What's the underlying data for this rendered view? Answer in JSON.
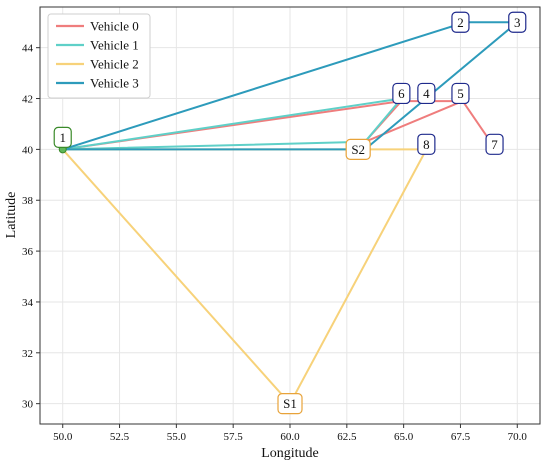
{
  "chart_data": {
    "type": "line",
    "xlabel": "Longitude",
    "ylabel": "Latitude",
    "xlim": [
      49.0,
      71.0
    ],
    "ylim": [
      29.2,
      45.6
    ],
    "x_ticks": [
      "50.0",
      "52.5",
      "55.0",
      "57.5",
      "60.0",
      "62.5",
      "65.0",
      "67.5",
      "70.0"
    ],
    "y_ticks": [
      "30",
      "32",
      "34",
      "36",
      "38",
      "40",
      "42",
      "44"
    ],
    "grid": true,
    "legend_position": "top-left",
    "nodes": [
      {
        "id": "1",
        "label": "1",
        "x": 50.0,
        "y": 40.0,
        "color": "#3a8a2a"
      },
      {
        "id": "2",
        "label": "2",
        "x": 67.5,
        "y": 45.0,
        "color": "#1f2a8c"
      },
      {
        "id": "3",
        "label": "3",
        "x": 70.0,
        "y": 45.0,
        "color": "#1f2a8c"
      },
      {
        "id": "4",
        "label": "4",
        "x": 66.0,
        "y": 42.2,
        "color": "#1f2a8c"
      },
      {
        "id": "5",
        "label": "5",
        "x": 67.5,
        "y": 42.2,
        "color": "#1f2a8c"
      },
      {
        "id": "6",
        "label": "6",
        "x": 64.9,
        "y": 42.2,
        "color": "#1f2a8c"
      },
      {
        "id": "7",
        "label": "7",
        "x": 69.0,
        "y": 40.2,
        "color": "#1f2a8c"
      },
      {
        "id": "8",
        "label": "8",
        "x": 66.0,
        "y": 40.2,
        "color": "#1f2a8c"
      },
      {
        "id": "S1",
        "label": "S1",
        "x": 60.0,
        "y": 30.0,
        "color": "#e8a33a"
      },
      {
        "id": "S2",
        "label": "S2",
        "x": 63.0,
        "y": 40.0,
        "color": "#e8a33a"
      }
    ],
    "series": [
      {
        "name": "Vehicle 0",
        "color": "#ef7d7d",
        "points": [
          [
            50.0,
            40.0
          ],
          [
            64.9,
            41.9
          ],
          [
            63.3,
            40.3
          ],
          [
            67.6,
            41.9
          ],
          [
            68.9,
            40.2
          ],
          [
            67.6,
            41.9
          ],
          [
            64.9,
            41.9
          ],
          [
            50.0,
            40.0
          ]
        ]
      },
      {
        "name": "Vehicle 1",
        "color": "#5fd0c8",
        "points": [
          [
            50.0,
            40.0
          ],
          [
            64.9,
            42.0
          ],
          [
            63.3,
            40.3
          ],
          [
            50.0,
            40.0
          ]
        ]
      },
      {
        "name": "Vehicle 2",
        "color": "#f7d27a",
        "points": [
          [
            50.0,
            40.0
          ],
          [
            60.0,
            30.0
          ],
          [
            66.0,
            40.0
          ],
          [
            63.2,
            40.0
          ],
          [
            50.0,
            40.0
          ]
        ]
      },
      {
        "name": "Vehicle 3",
        "color": "#2d9bbb",
        "points": [
          [
            50.0,
            40.0
          ],
          [
            67.7,
            45.0
          ],
          [
            70.0,
            45.0
          ],
          [
            63.3,
            40.0
          ],
          [
            50.0,
            40.0
          ]
        ]
      }
    ]
  }
}
